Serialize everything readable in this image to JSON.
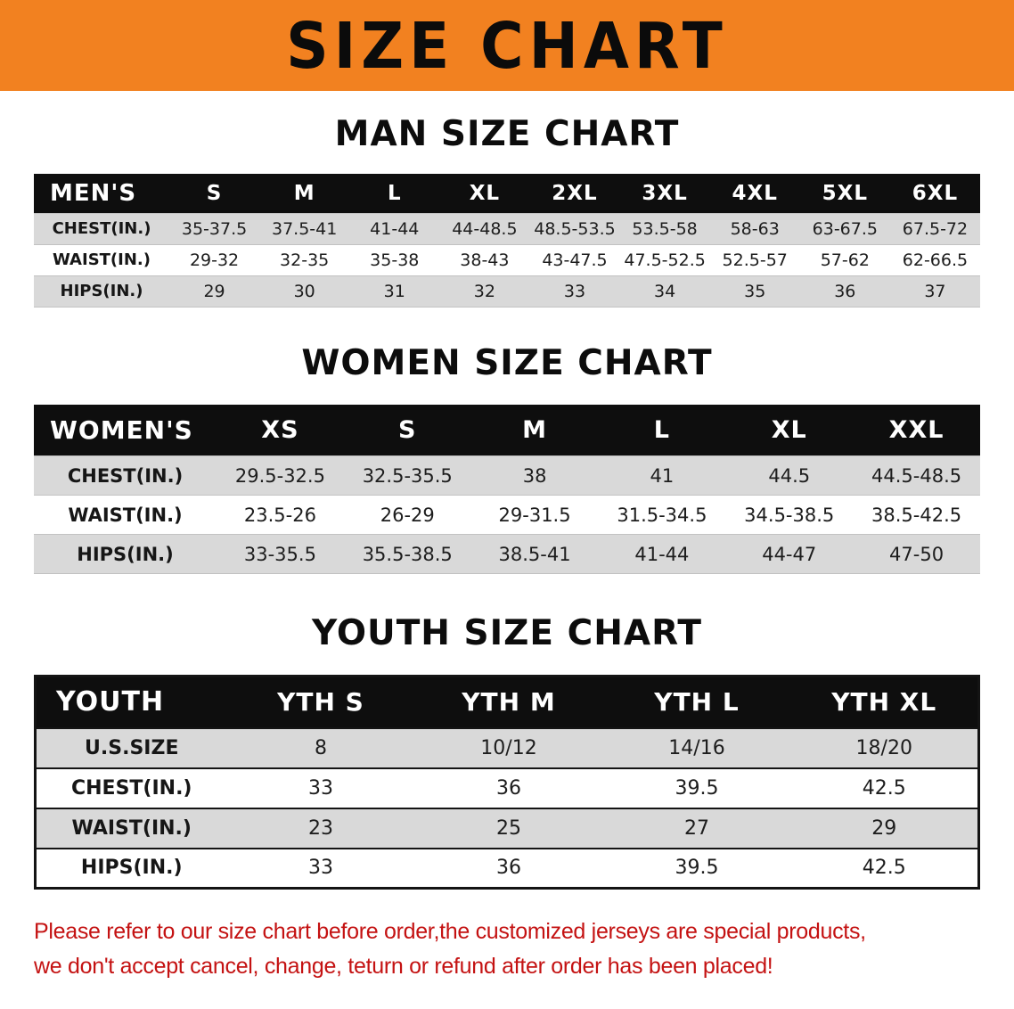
{
  "banner": {
    "title": "SIZE CHART"
  },
  "colors": {
    "banner_bg": "#f28120",
    "header_bg": "#0e0e0e",
    "row_alt": "#d9d9d9",
    "note_red": "#c41212"
  },
  "men": {
    "heading": "MAN SIZE CHART",
    "header": [
      "MEN'S",
      "S",
      "M",
      "L",
      "XL",
      "2XL",
      "3XL",
      "4XL",
      "5XL",
      "6XL"
    ],
    "rows": [
      [
        "CHEST(IN.)",
        "35-37.5",
        "37.5-41",
        "41-44",
        "44-48.5",
        "48.5-53.5",
        "53.5-58",
        "58-63",
        "63-67.5",
        "67.5-72"
      ],
      [
        "WAIST(IN.)",
        "29-32",
        "32-35",
        "35-38",
        "38-43",
        "43-47.5",
        "47.5-52.5",
        "52.5-57",
        "57-62",
        "62-66.5"
      ],
      [
        "HIPS(IN.)",
        "29",
        "30",
        "31",
        "32",
        "33",
        "34",
        "35",
        "36",
        "37"
      ]
    ]
  },
  "women": {
    "heading": "WOMEN SIZE CHART",
    "header": [
      "WOMEN'S",
      "XS",
      "S",
      "M",
      "L",
      "XL",
      "XXL"
    ],
    "rows": [
      [
        "CHEST(IN.)",
        "29.5-32.5",
        "32.5-35.5",
        "38",
        "41",
        "44.5",
        "44.5-48.5"
      ],
      [
        "WAIST(IN.)",
        "23.5-26",
        "26-29",
        "29-31.5",
        "31.5-34.5",
        "34.5-38.5",
        "38.5-42.5"
      ],
      [
        "HIPS(IN.)",
        "33-35.5",
        "35.5-38.5",
        "38.5-41",
        "41-44",
        "44-47",
        "47-50"
      ]
    ]
  },
  "youth": {
    "heading": "YOUTH SIZE CHART",
    "header": [
      "YOUTH",
      "YTH S",
      "YTH M",
      "YTH L",
      "YTH XL"
    ],
    "rows": [
      [
        "U.S.SIZE",
        "8",
        "10/12",
        "14/16",
        "18/20"
      ],
      [
        "CHEST(IN.)",
        "33",
        "36",
        "39.5",
        "42.5"
      ],
      [
        "WAIST(IN.)",
        "23",
        "25",
        "27",
        "29"
      ],
      [
        "HIPS(IN.)",
        "33",
        "36",
        "39.5",
        "42.5"
      ]
    ]
  },
  "note": {
    "line1": "Please refer to our size chart before order,the customized jerseys are special products,",
    "line2": "we don't accept cancel, change, teturn or refund after order has been placed!"
  }
}
